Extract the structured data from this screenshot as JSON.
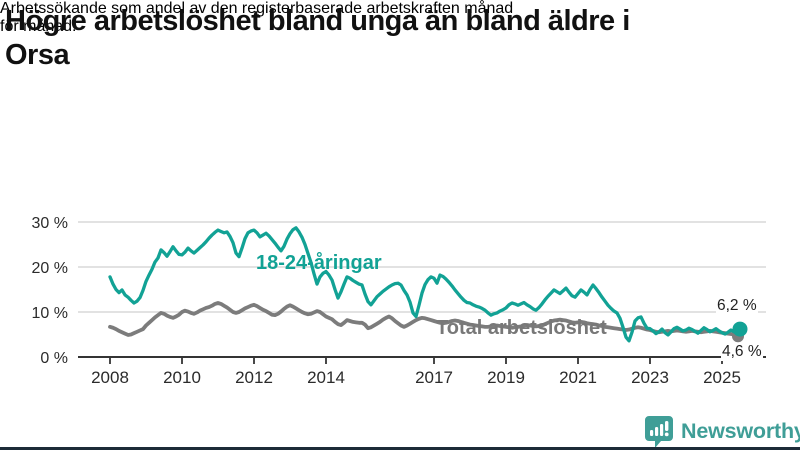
{
  "header": {
    "title": "Högre arbetslöshet bland unga än bland äldre i Orsa",
    "title_lines": [
      "Högre arbetslöshet bland unga än bland äldre i",
      "Orsa"
    ],
    "subtitle": "Arbetssökande som andel av den registerbaserade arbetskraften månad för månad.",
    "subtitle_lines": [
      "Arbetssökande som andel av den registerbaserade arbetskraften månad",
      "för månad."
    ]
  },
  "branding": {
    "logo_text": "Newsworthy",
    "logo_icon": "bar-chart-speech-bubble-icon",
    "logo_color": "#3f9e97"
  },
  "colors": {
    "youth_line": "#12a295",
    "total_line": "#7c7c7c",
    "grid": "#d8d8d8",
    "axis": "#343434",
    "text": "#222222",
    "bottom_bar": "#1d2b38"
  },
  "chart_data": {
    "type": "line",
    "title": "Högre arbetslöshet bland unga än bland äldre i Orsa",
    "subtitle": "Arbetssökande som andel av den registerbaserade arbetskraften månad för månad.",
    "xlabel": "",
    "ylabel": "",
    "grid": true,
    "legend_position": "inline",
    "x_unit": "month",
    "x_start_year": 2008,
    "x_end_label": "2025-07",
    "ylim": [
      0,
      30
    ],
    "y_axis": {
      "values": [
        0,
        10,
        20,
        30
      ],
      "ticks": [
        "0 %",
        "10 %",
        "20 %",
        "30 %"
      ]
    },
    "x_axis": {
      "tick_years": [
        2008,
        2010,
        2012,
        2014,
        2017,
        2019,
        2021,
        2023,
        2025
      ],
      "tick_labels": [
        "2008",
        "2010",
        "2012",
        "2014",
        "2017",
        "2019",
        "2021",
        "2023",
        "2025"
      ]
    },
    "series": [
      {
        "name": "18-24-åringar",
        "color": "#12a295",
        "end_value": 6.2,
        "end_label": "6,2 %",
        "values": [
          17.8,
          16.2,
          15.0,
          14.3,
          14.9,
          13.8,
          13.3,
          12.6,
          12.0,
          12.4,
          13.2,
          14.8,
          16.8,
          18.2,
          19.5,
          21.1,
          22.0,
          23.8,
          23.2,
          22.4,
          23.4,
          24.5,
          23.6,
          22.8,
          22.7,
          23.3,
          24.2,
          23.6,
          23.1,
          23.7,
          24.3,
          24.9,
          25.6,
          26.4,
          27.1,
          27.7,
          28.2,
          27.9,
          27.6,
          27.8,
          26.8,
          25.4,
          23.1,
          22.3,
          24.2,
          26.3,
          27.6,
          28.0,
          28.2,
          27.6,
          26.7,
          27.1,
          27.5,
          26.9,
          26.1,
          25.3,
          24.4,
          23.6,
          24.6,
          26.2,
          27.4,
          28.3,
          28.7,
          27.8,
          26.6,
          25.0,
          23.0,
          21.0,
          18.5,
          16.2,
          17.8,
          18.6,
          19.0,
          18.2,
          17.1,
          15.0,
          13.1,
          14.5,
          16.2,
          17.8,
          17.5,
          17.0,
          16.6,
          16.2,
          16.0,
          14.0,
          12.3,
          11.6,
          12.5,
          13.4,
          14.0,
          14.6,
          15.1,
          15.6,
          16.0,
          16.3,
          16.4,
          16.0,
          14.8,
          13.8,
          12.2,
          9.8,
          9.0,
          11.5,
          14.2,
          16.1,
          17.2,
          17.8,
          17.5,
          16.4,
          18.2,
          17.9,
          17.3,
          16.6,
          15.8,
          14.9,
          14.1,
          13.3,
          12.6,
          12.1,
          12.0,
          11.6,
          11.3,
          11.1,
          10.8,
          10.4,
          9.8,
          9.3,
          9.6,
          9.8,
          10.2,
          10.5,
          10.9,
          11.6,
          12.0,
          11.8,
          11.5,
          11.8,
          12.1,
          11.6,
          11.2,
          10.7,
          10.4,
          11.0,
          11.8,
          12.7,
          13.5,
          14.2,
          14.9,
          14.5,
          14.1,
          14.7,
          15.3,
          14.4,
          13.6,
          13.3,
          14.1,
          14.9,
          14.4,
          13.8,
          15.0,
          16.0,
          15.2,
          14.3,
          13.3,
          12.4,
          11.5,
          10.8,
          10.2,
          9.8,
          8.6,
          6.6,
          4.4,
          3.6,
          5.5,
          8.0,
          8.7,
          8.9,
          7.5,
          6.4,
          6.3,
          5.8,
          5.2,
          5.6,
          6.2,
          5.4,
          4.9,
          5.6,
          6.3,
          6.6,
          6.2,
          5.8,
          6.0,
          6.4,
          6.1,
          5.7,
          5.3,
          5.9,
          6.5,
          6.1,
          5.6,
          5.9,
          6.3,
          5.8,
          5.4,
          5.1,
          5.5,
          6.0,
          5.6,
          5.9,
          6.2
        ]
      },
      {
        "name": "Total arbetslöshet",
        "color": "#7c7c7c",
        "end_value": 4.6,
        "end_label": "4,6 %",
        "values": [
          6.7,
          6.5,
          6.2,
          5.8,
          5.5,
          5.2,
          4.9,
          5.0,
          5.3,
          5.6,
          5.9,
          6.2,
          7.0,
          7.6,
          8.2,
          8.8,
          9.3,
          9.8,
          9.6,
          9.2,
          8.9,
          8.7,
          9.0,
          9.4,
          10.0,
          10.3,
          10.1,
          9.8,
          9.6,
          9.9,
          10.3,
          10.6,
          10.9,
          11.1,
          11.4,
          11.8,
          12.0,
          11.8,
          11.4,
          11.0,
          10.5,
          10.0,
          9.8,
          10.0,
          10.4,
          10.8,
          11.1,
          11.4,
          11.6,
          11.3,
          10.9,
          10.5,
          10.2,
          9.8,
          9.4,
          9.3,
          9.6,
          10.1,
          10.7,
          11.2,
          11.5,
          11.2,
          10.8,
          10.4,
          10.0,
          9.7,
          9.5,
          9.6,
          9.9,
          10.2,
          10.0,
          9.5,
          9.0,
          8.7,
          8.4,
          7.8,
          7.3,
          7.1,
          7.6,
          8.2,
          8.0,
          7.8,
          7.7,
          7.6,
          7.6,
          7.2,
          6.4,
          6.6,
          7.0,
          7.4,
          7.8,
          8.3,
          8.7,
          9.0,
          8.6,
          8.0,
          7.5,
          7.0,
          6.7,
          7.0,
          7.4,
          7.8,
          8.2,
          8.5,
          8.7,
          8.6,
          8.4,
          8.2,
          8.0,
          7.8,
          7.6,
          7.5,
          7.6,
          7.8,
          8.0,
          8.1,
          8.0,
          7.8,
          7.6,
          7.4,
          7.2,
          7.1,
          7.0,
          6.9,
          6.8,
          6.7,
          6.7,
          6.8,
          6.9,
          7.0,
          6.9,
          6.8,
          6.7,
          6.6,
          6.5,
          6.6,
          6.7,
          6.8,
          7.0,
          7.1,
          7.0,
          6.9,
          6.8,
          6.9,
          7.0,
          7.3,
          7.6,
          7.9,
          8.1,
          8.2,
          8.3,
          8.2,
          8.1,
          7.9,
          7.7,
          7.6,
          7.7,
          7.8,
          7.7,
          7.5,
          7.4,
          7.3,
          7.2,
          7.0,
          6.9,
          6.7,
          6.6,
          6.5,
          6.4,
          6.3,
          6.2,
          6.1,
          6.0,
          6.1,
          6.3,
          6.5,
          6.6,
          6.5,
          6.3,
          6.1,
          6.0,
          5.8,
          5.6,
          5.5,
          5.6,
          5.7,
          5.8,
          5.7,
          5.8,
          5.9,
          5.8,
          5.7,
          5.6,
          5.7,
          5.8,
          5.7,
          5.6,
          5.5,
          5.6,
          5.7,
          5.8,
          5.7,
          5.6,
          5.5,
          5.4,
          5.3,
          5.2,
          5.1,
          5.0,
          4.8,
          4.6
        ]
      }
    ]
  }
}
